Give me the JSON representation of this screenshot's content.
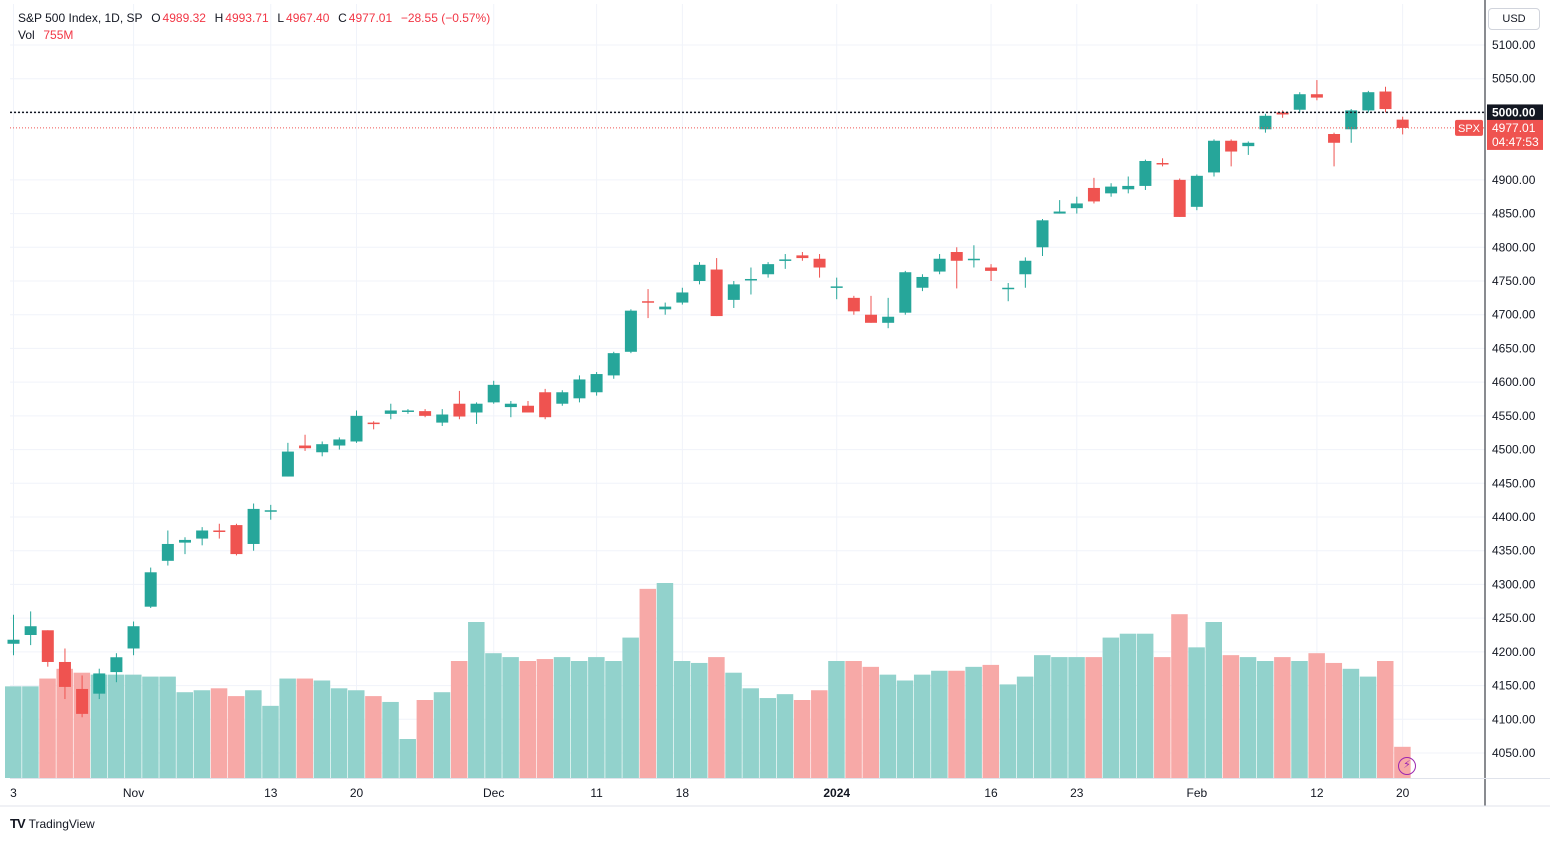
{
  "legend": {
    "symbol": "S&P 500 Index, 1D, SP",
    "o_label": "O",
    "o_value": "4989.32",
    "h_label": "H",
    "h_value": "4993.71",
    "l_label": "L",
    "l_value": "4967.40",
    "c_label": "C",
    "c_value": "4977.01",
    "change": "−28.55 (−0.57%)",
    "vol_label": "Vol",
    "vol_value": "755M"
  },
  "currency": "USD",
  "brand": "TradingView",
  "colors": {
    "up": "#26a69a",
    "down": "#ef5350",
    "up_vol": "#92d2cc",
    "down_vol": "#f7a9a7",
    "grid": "#f0f3fa",
    "axis_text": "#131722"
  },
  "chart_data": {
    "type": "candlestick",
    "y_axis_ticks": [
      "5100.00",
      "5050.00",
      "5000.00",
      "4900.00",
      "4850.00",
      "4800.00",
      "4750.00",
      "4700.00",
      "4650.00",
      "4600.00",
      "4550.00",
      "4500.00",
      "4450.00",
      "4400.00",
      "4350.00",
      "4300.00",
      "4250.00",
      "4200.00",
      "4150.00",
      "4100.00",
      "4050.00"
    ],
    "y_range": [
      4030,
      5130
    ],
    "x_axis_ticks": [
      {
        "label": "3",
        "index": 0
      },
      {
        "label": "Nov",
        "index": 7
      },
      {
        "label": "13",
        "index": 15
      },
      {
        "label": "20",
        "index": 20
      },
      {
        "label": "Dec",
        "index": 28
      },
      {
        "label": "11",
        "index": 34
      },
      {
        "label": "18",
        "index": 39
      },
      {
        "label": "2024",
        "index": 48,
        "bold": true
      },
      {
        "label": "16",
        "index": 57
      },
      {
        "label": "23",
        "index": 62
      },
      {
        "label": "Feb",
        "index": 69
      },
      {
        "label": "12",
        "index": 76
      },
      {
        "label": "20",
        "index": 81
      }
    ],
    "markers": [
      {
        "price": 5000.0,
        "label": "5000.00",
        "style": "black-dotted"
      },
      {
        "price": 4977.01,
        "label": "4977.01",
        "sublabel": "04:47:53",
        "tag": "SPX",
        "style": "red-dotted"
      }
    ],
    "series": [
      {
        "o": 4212,
        "h": 4255,
        "l": 4195,
        "c": 4218,
        "v": 0.47
      },
      {
        "o": 4225,
        "h": 4260,
        "l": 4210,
        "c": 4238,
        "v": 0.47
      },
      {
        "o": 4232,
        "h": 4232,
        "l": 4178,
        "c": 4185,
        "v": 0.51
      },
      {
        "o": 4185,
        "h": 4205,
        "l": 4130,
        "c": 4148,
        "v": 0.56
      },
      {
        "o": 4145,
        "h": 4165,
        "l": 4103,
        "c": 4108,
        "v": 0.54
      },
      {
        "o": 4138,
        "h": 4175,
        "l": 4130,
        "c": 4168,
        "v": 0.53
      },
      {
        "o": 4170,
        "h": 4198,
        "l": 4155,
        "c": 4192,
        "v": 0.53
      },
      {
        "o": 4205,
        "h": 4245,
        "l": 4195,
        "c": 4238,
        "v": 0.53
      },
      {
        "o": 4267,
        "h": 4325,
        "l": 4265,
        "c": 4318,
        "v": 0.52
      },
      {
        "o": 4335,
        "h": 4380,
        "l": 4328,
        "c": 4360,
        "v": 0.52
      },
      {
        "o": 4362,
        "h": 4370,
        "l": 4345,
        "c": 4366,
        "v": 0.44
      },
      {
        "o": 4368,
        "h": 4385,
        "l": 4358,
        "c": 4380,
        "v": 0.45
      },
      {
        "o": 4380,
        "h": 4390,
        "l": 4368,
        "c": 4378,
        "v": 0.46
      },
      {
        "o": 4388,
        "h": 4390,
        "l": 4343,
        "c": 4345,
        "v": 0.42
      },
      {
        "o": 4360,
        "h": 4420,
        "l": 4350,
        "c": 4412,
        "v": 0.45
      },
      {
        "o": 4408,
        "h": 4418,
        "l": 4396,
        "c": 4410,
        "v": 0.37
      },
      {
        "o": 4460,
        "h": 4510,
        "l": 4460,
        "c": 4497,
        "v": 0.51
      },
      {
        "o": 4506,
        "h": 4522,
        "l": 4498,
        "c": 4502,
        "v": 0.51
      },
      {
        "o": 4496,
        "h": 4512,
        "l": 4490,
        "c": 4508,
        "v": 0.5
      },
      {
        "o": 4506,
        "h": 4518,
        "l": 4500,
        "c": 4515,
        "v": 0.46
      },
      {
        "o": 4512,
        "h": 4558,
        "l": 4510,
        "c": 4550,
        "v": 0.45
      },
      {
        "o": 4540,
        "h": 4542,
        "l": 4530,
        "c": 4538,
        "v": 0.42
      },
      {
        "o": 4553,
        "h": 4568,
        "l": 4545,
        "c": 4558,
        "v": 0.39
      },
      {
        "o": 4556,
        "h": 4560,
        "l": 4553,
        "c": 4558,
        "v": 0.2
      },
      {
        "o": 4557,
        "h": 4560,
        "l": 4548,
        "c": 4550,
        "v": 0.4
      },
      {
        "o": 4540,
        "h": 4560,
        "l": 4535,
        "c": 4552,
        "v": 0.44
      },
      {
        "o": 4568,
        "h": 4587,
        "l": 4545,
        "c": 4549,
        "v": 0.6
      },
      {
        "o": 4555,
        "h": 4570,
        "l": 4538,
        "c": 4568,
        "v": 0.8
      },
      {
        "o": 4570,
        "h": 4602,
        "l": 4568,
        "c": 4596,
        "v": 0.64
      },
      {
        "o": 4563,
        "h": 4572,
        "l": 4548,
        "c": 4568,
        "v": 0.62
      },
      {
        "o": 4565,
        "h": 4572,
        "l": 4555,
        "c": 4555,
        "v": 0.6
      },
      {
        "o": 4585,
        "h": 4590,
        "l": 4545,
        "c": 4548,
        "v": 0.61
      },
      {
        "o": 4568,
        "h": 4588,
        "l": 4565,
        "c": 4585,
        "v": 0.62
      },
      {
        "o": 4576,
        "h": 4610,
        "l": 4570,
        "c": 4604,
        "v": 0.6
      },
      {
        "o": 4585,
        "h": 4615,
        "l": 4580,
        "c": 4612,
        "v": 0.62
      },
      {
        "o": 4610,
        "h": 4645,
        "l": 4605,
        "c": 4643,
        "v": 0.6
      },
      {
        "o": 4645,
        "h": 4708,
        "l": 4643,
        "c": 4706,
        "v": 0.72
      },
      {
        "o": 4720,
        "h": 4738,
        "l": 4695,
        "c": 4719,
        "v": 0.97
      },
      {
        "o": 4708,
        "h": 4718,
        "l": 4700,
        "c": 4712,
        "v": 1.0
      },
      {
        "o": 4718,
        "h": 4740,
        "l": 4715,
        "c": 4733,
        "v": 0.6
      },
      {
        "o": 4750,
        "h": 4778,
        "l": 4745,
        "c": 4774,
        "v": 0.59
      },
      {
        "o": 4767,
        "h": 4784,
        "l": 4698,
        "c": 4698,
        "v": 0.62
      },
      {
        "o": 4722,
        "h": 4750,
        "l": 4710,
        "c": 4745,
        "v": 0.54
      },
      {
        "o": 4752,
        "h": 4770,
        "l": 4730,
        "c": 4753,
        "v": 0.46
      },
      {
        "o": 4760,
        "h": 4778,
        "l": 4755,
        "c": 4775,
        "v": 0.41
      },
      {
        "o": 4780,
        "h": 4790,
        "l": 4768,
        "c": 4782,
        "v": 0.43
      },
      {
        "o": 4788,
        "h": 4793,
        "l": 4780,
        "c": 4784,
        "v": 0.4
      },
      {
        "o": 4783,
        "h": 4790,
        "l": 4755,
        "c": 4770,
        "v": 0.45
      },
      {
        "o": 4742,
        "h": 4755,
        "l": 4723,
        "c": 4742,
        "v": 0.6
      },
      {
        "o": 4725,
        "h": 4728,
        "l": 4700,
        "c": 4705,
        "v": 0.6
      },
      {
        "o": 4700,
        "h": 4728,
        "l": 4688,
        "c": 4688,
        "v": 0.57
      },
      {
        "o": 4688,
        "h": 4725,
        "l": 4680,
        "c": 4697,
        "v": 0.53
      },
      {
        "o": 4703,
        "h": 4765,
        "l": 4700,
        "c": 4763,
        "v": 0.5
      },
      {
        "o": 4740,
        "h": 4760,
        "l": 4735,
        "c": 4756,
        "v": 0.53
      },
      {
        "o": 4764,
        "h": 4790,
        "l": 4760,
        "c": 4783,
        "v": 0.55
      },
      {
        "o": 4793,
        "h": 4800,
        "l": 4739,
        "c": 4780,
        "v": 0.55
      },
      {
        "o": 4783,
        "h": 4803,
        "l": 4770,
        "c": 4783,
        "v": 0.57
      },
      {
        "o": 4770,
        "h": 4775,
        "l": 4750,
        "c": 4765,
        "v": 0.58
      },
      {
        "o": 4740,
        "h": 4747,
        "l": 4720,
        "c": 4740,
        "v": 0.48
      },
      {
        "o": 4760,
        "h": 4785,
        "l": 4740,
        "c": 4780,
        "v": 0.52
      },
      {
        "o": 4800,
        "h": 4842,
        "l": 4787,
        "c": 4840,
        "v": 0.63
      },
      {
        "o": 4850,
        "h": 4870,
        "l": 4850,
        "c": 4853,
        "v": 0.62
      },
      {
        "o": 4858,
        "h": 4875,
        "l": 4850,
        "c": 4865,
        "v": 0.62
      },
      {
        "o": 4888,
        "h": 4903,
        "l": 4865,
        "c": 4868,
        "v": 0.62
      },
      {
        "o": 4880,
        "h": 4895,
        "l": 4875,
        "c": 4890,
        "v": 0.72
      },
      {
        "o": 4886,
        "h": 4905,
        "l": 4880,
        "c": 4891,
        "v": 0.74
      },
      {
        "o": 4891,
        "h": 4930,
        "l": 4885,
        "c": 4928,
        "v": 0.74
      },
      {
        "o": 4925,
        "h": 4932,
        "l": 4920,
        "c": 4924,
        "v": 0.62
      },
      {
        "o": 4900,
        "h": 4902,
        "l": 4845,
        "c": 4845,
        "v": 0.84
      },
      {
        "o": 4860,
        "h": 4908,
        "l": 4855,
        "c": 4906,
        "v": 0.67
      },
      {
        "o": 4911,
        "h": 4960,
        "l": 4905,
        "c": 4958,
        "v": 0.8
      },
      {
        "o": 4958,
        "h": 4960,
        "l": 4920,
        "c": 4942,
        "v": 0.63
      },
      {
        "o": 4950,
        "h": 4957,
        "l": 4937,
        "c": 4955,
        "v": 0.62
      },
      {
        "o": 4975,
        "h": 4998,
        "l": 4970,
        "c": 4995,
        "v": 0.6
      },
      {
        "o": 5000,
        "h": 5003,
        "l": 4992,
        "c": 4997,
        "v": 0.62
      },
      {
        "o": 5004,
        "h": 5030,
        "l": 5000,
        "c": 5027,
        "v": 0.6
      },
      {
        "o": 5027,
        "h": 5048,
        "l": 5018,
        "c": 5022,
        "v": 0.64
      },
      {
        "o": 4968,
        "h": 4970,
        "l": 4920,
        "c": 4955,
        "v": 0.59
      },
      {
        "o": 4975,
        "h": 5005,
        "l": 4955,
        "c": 5003,
        "v": 0.56
      },
      {
        "o": 5003,
        "h": 5032,
        "l": 5000,
        "c": 5030,
        "v": 0.52
      },
      {
        "o": 5031,
        "h": 5038,
        "l": 5000,
        "c": 5005,
        "v": 0.6
      },
      {
        "o": 4989.32,
        "h": 4993.71,
        "l": 4967.4,
        "c": 4977.01,
        "v": 0.16
      }
    ]
  }
}
